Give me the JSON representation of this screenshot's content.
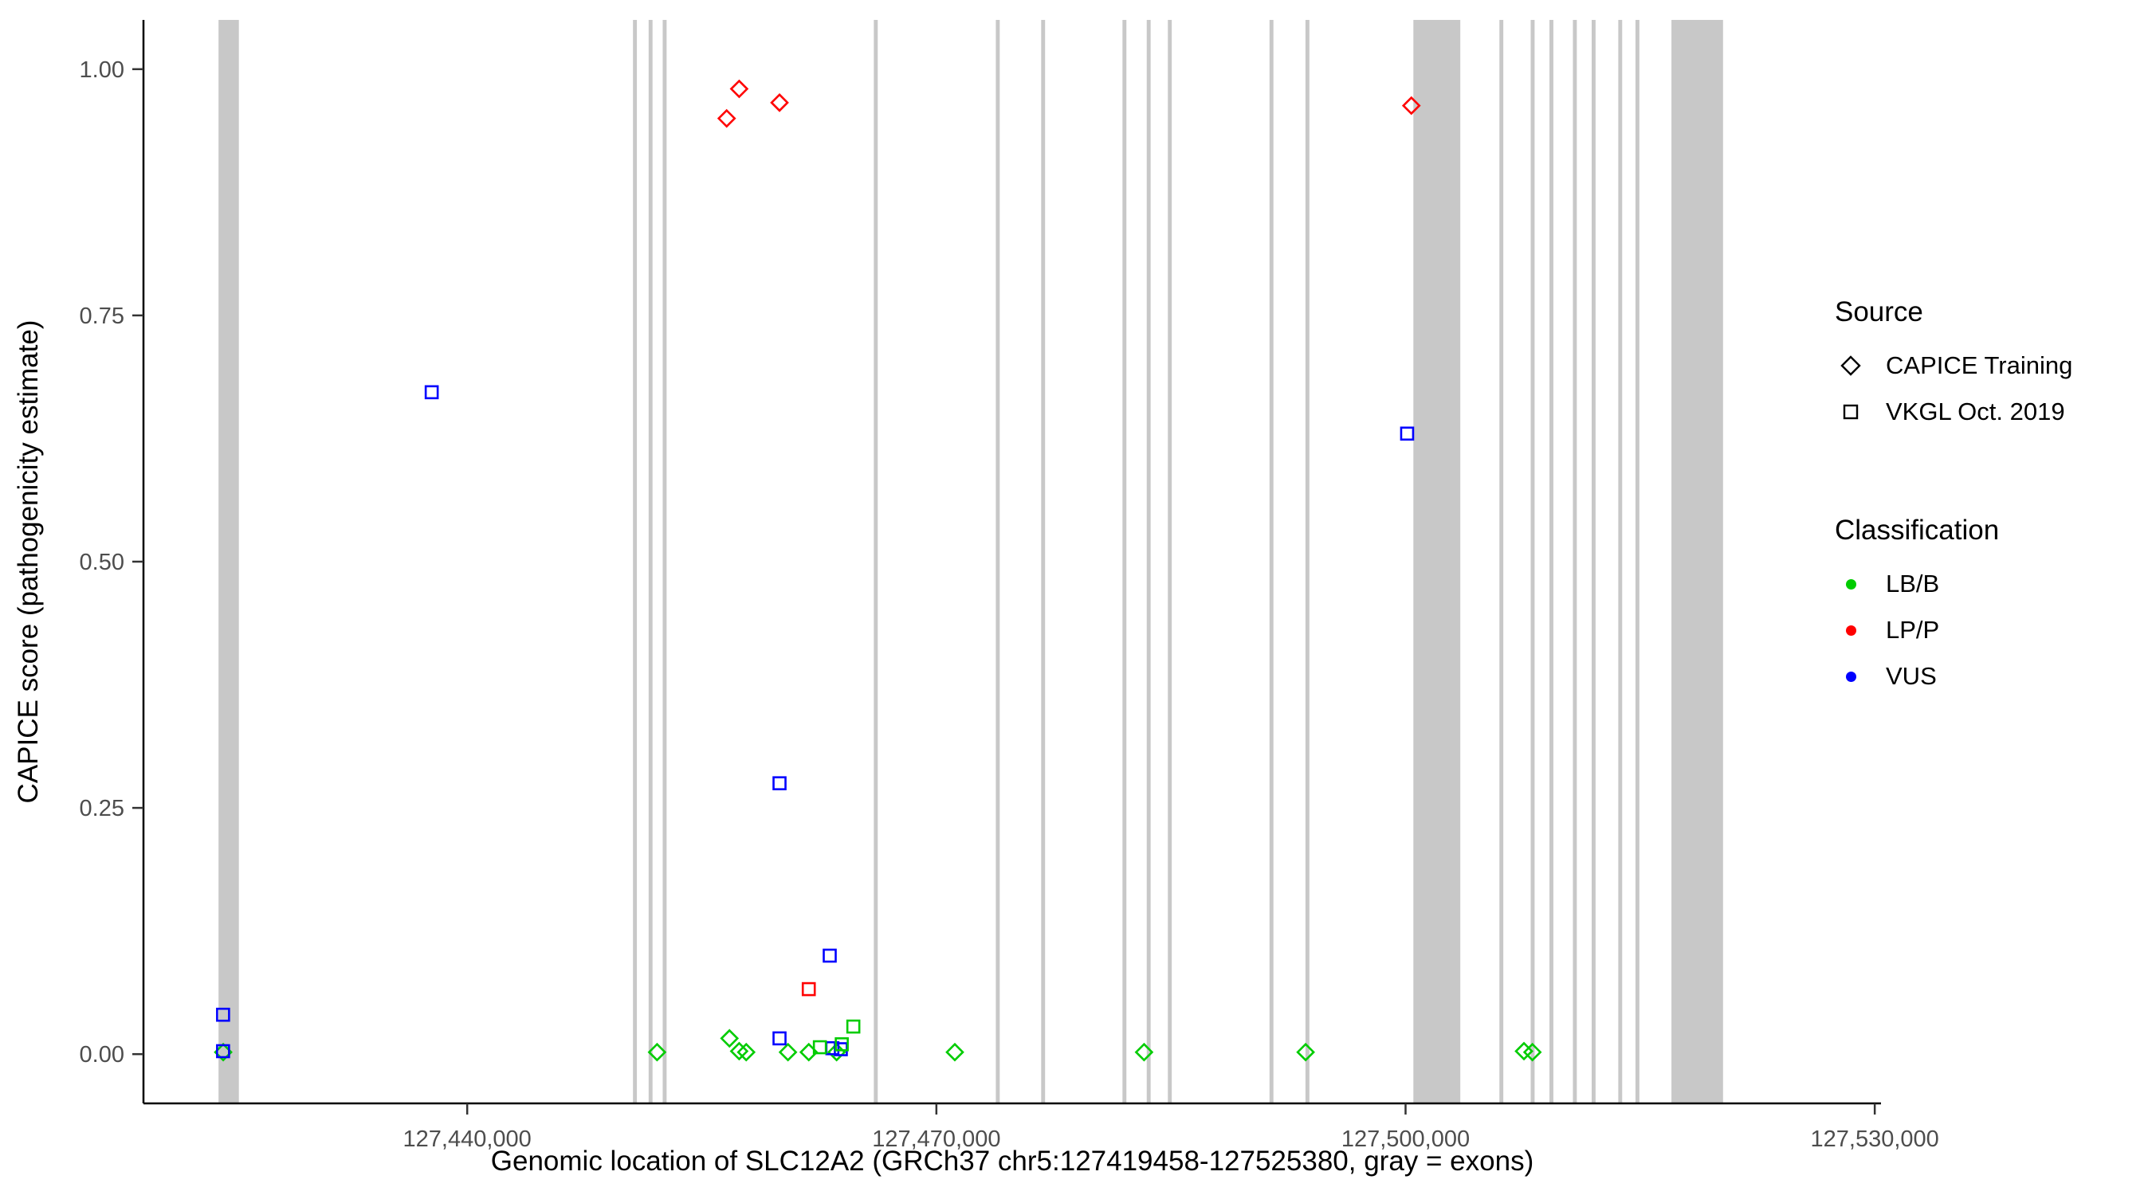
{
  "chart_data": {
    "type": "scatter",
    "xlabel": "Genomic location of SLC12A2 (GRCh37 chr5:127419458-127525380, gray = exons)",
    "ylabel": "CAPICE score (pathogenicity estimate)",
    "x_domain": [
      127419300,
      127530400
    ],
    "y_domain": [
      -0.05,
      1.05
    ],
    "x_ticks": [
      {
        "value": 127440000,
        "label": "127,440,000"
      },
      {
        "value": 127470000,
        "label": "127,470,000"
      },
      {
        "value": 127500000,
        "label": "127,500,000"
      },
      {
        "value": 127530000,
        "label": "127,530,000"
      }
    ],
    "y_ticks": [
      {
        "value": 0.0,
        "label": "0.00"
      },
      {
        "value": 0.25,
        "label": "0.25"
      },
      {
        "value": 0.5,
        "label": "0.50"
      },
      {
        "value": 0.75,
        "label": "0.75"
      },
      {
        "value": 1.0,
        "label": "1.00"
      }
    ],
    "exon_color": "#C8C8C8",
    "exons": [
      [
        127424100,
        127425400
      ],
      [
        127450600,
        127450850
      ],
      [
        127451600,
        127451850
      ],
      [
        127452500,
        127452750
      ],
      [
        127466000,
        127466250
      ],
      [
        127473800,
        127474050
      ],
      [
        127476700,
        127476950
      ],
      [
        127481900,
        127482150
      ],
      [
        127483450,
        127483700
      ],
      [
        127484800,
        127485050
      ],
      [
        127491300,
        127491550
      ],
      [
        127493600,
        127493850
      ],
      [
        127500500,
        127503500
      ],
      [
        127506000,
        127506250
      ],
      [
        127508000,
        127508250
      ],
      [
        127509200,
        127509450
      ],
      [
        127510700,
        127510950
      ],
      [
        127511900,
        127512150
      ],
      [
        127513600,
        127513850
      ],
      [
        127514700,
        127514950
      ],
      [
        127517000,
        127520300
      ]
    ],
    "class_colors": {
      "LB/B": "#00CC00",
      "LP/P": "#FF0000",
      "VUS": "#0000FF"
    },
    "series": [
      {
        "name": "CAPICE Training",
        "shape": "diamond",
        "points": [
          {
            "x": 127424400,
            "y": 0.002,
            "cls": "LB/B"
          },
          {
            "x": 127452140,
            "y": 0.002,
            "cls": "LB/B"
          },
          {
            "x": 127456770,
            "y": 0.016,
            "cls": "LB/B"
          },
          {
            "x": 127457390,
            "y": 0.003,
            "cls": "LB/B"
          },
          {
            "x": 127457840,
            "y": 0.002,
            "cls": "LB/B"
          },
          {
            "x": 127460510,
            "y": 0.002,
            "cls": "LB/B"
          },
          {
            "x": 127461840,
            "y": 0.002,
            "cls": "LB/B"
          },
          {
            "x": 127463620,
            "y": 0.002,
            "cls": "LB/B"
          },
          {
            "x": 127471180,
            "y": 0.002,
            "cls": "LB/B"
          },
          {
            "x": 127483280,
            "y": 0.002,
            "cls": "LB/B"
          },
          {
            "x": 127493610,
            "y": 0.002,
            "cls": "LB/B"
          },
          {
            "x": 127507570,
            "y": 0.003,
            "cls": "LB/B"
          },
          {
            "x": 127508110,
            "y": 0.002,
            "cls": "LB/B"
          },
          {
            "x": 127456590,
            "y": 0.95,
            "cls": "LP/P"
          },
          {
            "x": 127457390,
            "y": 0.98,
            "cls": "LP/P"
          },
          {
            "x": 127459970,
            "y": 0.966,
            "cls": "LP/P"
          },
          {
            "x": 127500370,
            "y": 0.963,
            "cls": "LP/P"
          }
        ]
      },
      {
        "name": "VKGL Oct. 2019",
        "shape": "square",
        "points": [
          {
            "x": 127424390,
            "y": 0.04,
            "cls": "VUS"
          },
          {
            "x": 127424390,
            "y": 0.003,
            "cls": "VUS"
          },
          {
            "x": 127437730,
            "y": 0.672,
            "cls": "VUS"
          },
          {
            "x": 127459970,
            "y": 0.275,
            "cls": "VUS"
          },
          {
            "x": 127459970,
            "y": 0.016,
            "cls": "VUS"
          },
          {
            "x": 127463180,
            "y": 0.1,
            "cls": "VUS"
          },
          {
            "x": 127463350,
            "y": 0.006,
            "cls": "VUS"
          },
          {
            "x": 127463890,
            "y": 0.005,
            "cls": "VUS"
          },
          {
            "x": 127500100,
            "y": 0.63,
            "cls": "VUS"
          },
          {
            "x": 127461840,
            "y": 0.066,
            "cls": "LP/P"
          },
          {
            "x": 127464690,
            "y": 0.028,
            "cls": "LB/B"
          },
          {
            "x": 127462550,
            "y": 0.007,
            "cls": "LB/B"
          },
          {
            "x": 127463950,
            "y": 0.01,
            "cls": "LB/B"
          }
        ]
      }
    ]
  },
  "legend": {
    "source_title": "Source",
    "source_items": [
      {
        "label": "CAPICE Training",
        "shape": "diamond"
      },
      {
        "label": "VKGL Oct. 2019",
        "shape": "square"
      }
    ],
    "classification_title": "Classification",
    "classification_items": [
      {
        "label": "LB/B",
        "color": "#00CC00"
      },
      {
        "label": "LP/P",
        "color": "#FF0000"
      },
      {
        "label": "VUS",
        "color": "#0000FF"
      }
    ]
  }
}
